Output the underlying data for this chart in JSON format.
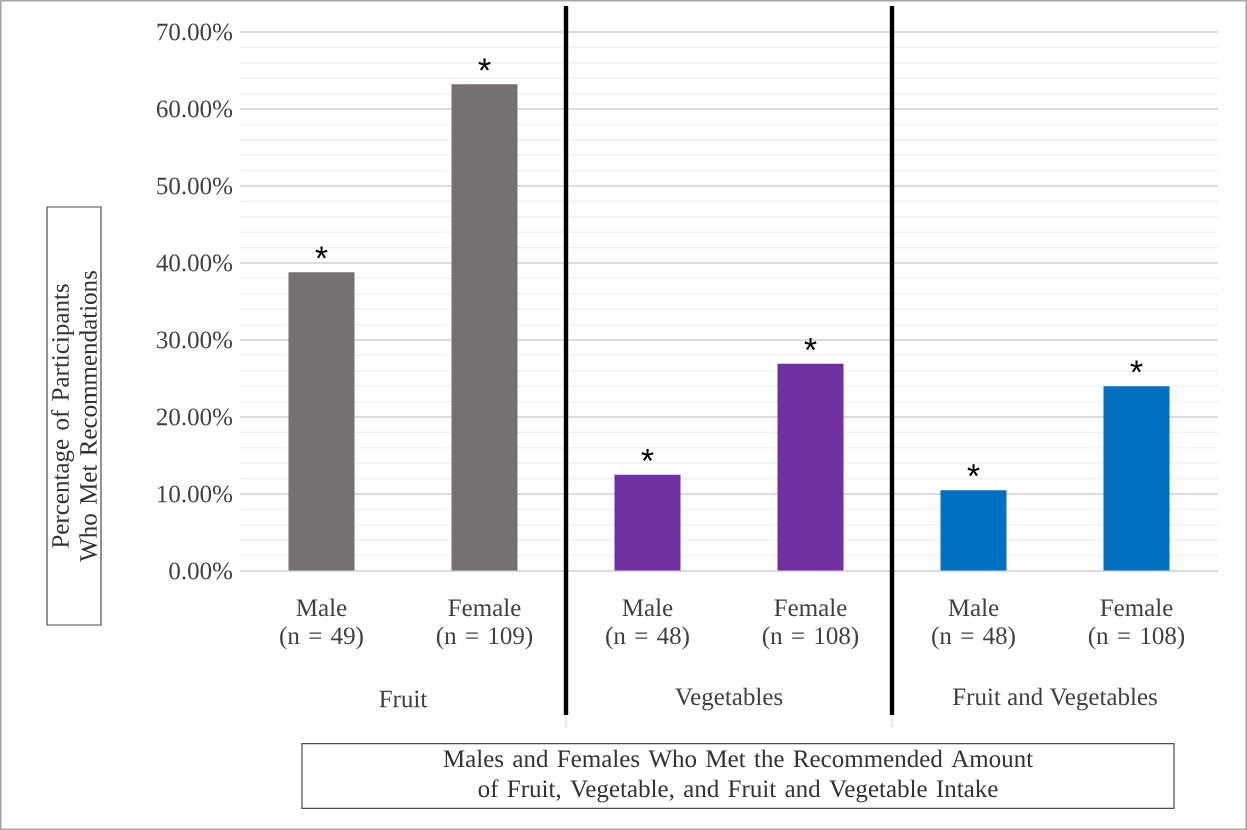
{
  "chart_data": {
    "type": "bar",
    "ylabel": "Percentage of Participants Who Met Recommendations",
    "xlabel": "Males and Females Who Met the Recommended Amount of Fruit, Vegetable, and Fruit and Vegetable Intake",
    "categories": [
      "Male (n = 49)",
      "Female (n = 109)",
      "Male (n = 48)",
      "Female (n = 108)",
      "Male (n = 48)",
      "Female (n = 108)"
    ],
    "values": [
      38.8,
      63.2,
      12.5,
      26.9,
      10.5,
      24.0
    ],
    "colors": [
      "#767171",
      "#767171",
      "#7030a0",
      "#7030a0",
      "#0070c0",
      "#0070c0"
    ],
    "value_labels": [
      "*",
      "*",
      "*",
      "*",
      "*",
      "*"
    ],
    "annotations": [
      "Fruit",
      "Vegetables",
      "Fruit and Vegetables"
    ],
    "ylim": [
      0,
      70
    ],
    "yticks": [
      {
        "value": 0,
        "label": "0.00%"
      },
      {
        "value": 10,
        "label": "10.00%"
      },
      {
        "value": 20,
        "label": "20.00%"
      },
      {
        "value": 30,
        "label": "30.00%"
      },
      {
        "value": 40,
        "label": "40.00%"
      },
      {
        "value": 50,
        "label": "50.00%"
      },
      {
        "value": 60,
        "label": "60.00%"
      },
      {
        "value": 70,
        "label": "70.00%"
      }
    ],
    "grid": "y"
  }
}
